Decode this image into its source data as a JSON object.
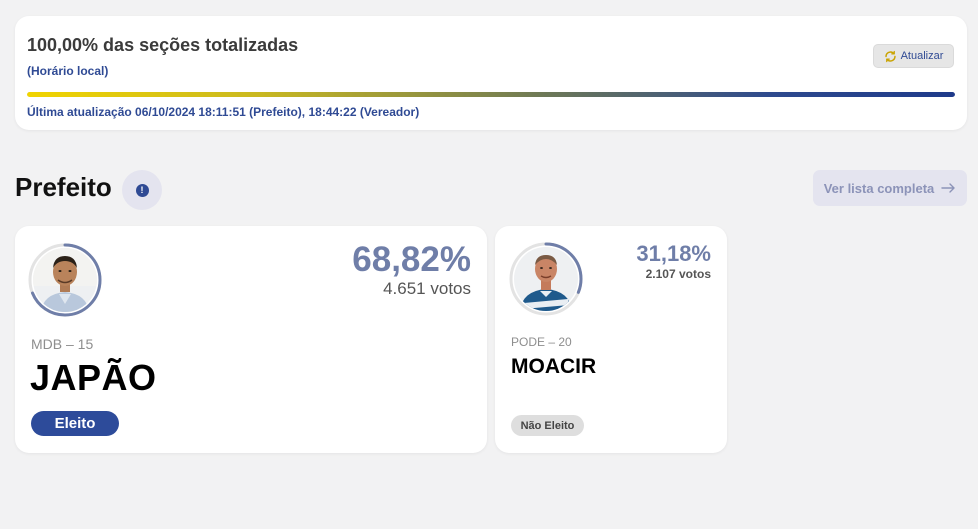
{
  "status": {
    "title": "100,00% das seções totalizadas",
    "subtitle": "(Horário local)",
    "refresh_label": "Atualizar",
    "refresh_icon": "refresh-icon",
    "progress": 1.0,
    "last_update": "Última atualização 06/10/2024 18:11:51 (Prefeito), 18:44:22 (Vereador)"
  },
  "section": {
    "title": "Prefeito",
    "info_icon": "info-icon",
    "list_button": "Ver lista completa",
    "list_icon": "arrow-right-icon"
  },
  "candidates": [
    {
      "party": "MDB – 15",
      "name": "JAPÃO",
      "percent": "68,82%",
      "votes": "4.651 votos",
      "status": "Eleito",
      "share": 0.6882
    },
    {
      "party": "PODE – 20",
      "name": "MOACIR",
      "percent": "31,18%",
      "votes": "2.107 votos",
      "status": "Não Eleito",
      "share": 0.3118
    }
  ],
  "colors": {
    "accent": "#2d4b9a",
    "percent": "#6f7ea8",
    "progress_start": "#f1d400",
    "progress_end": "#1e3a8a"
  }
}
